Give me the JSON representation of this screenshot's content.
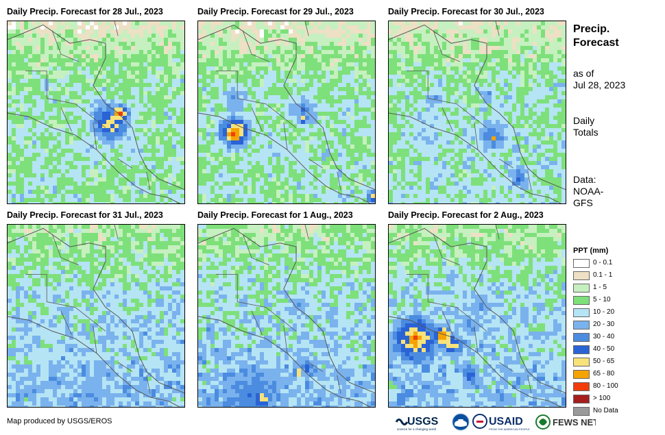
{
  "panels": [
    {
      "title": "Daily Precip. Forecast for 28 Jul., 2023",
      "date": "28 Jul., 2023"
    },
    {
      "title": "Daily Precip. Forecast for 29 Jul., 2023",
      "date": "29 Jul., 2023"
    },
    {
      "title": "Daily Precip. Forecast for 30 Jul., 2023",
      "date": "30 Jul., 2023"
    },
    {
      "title": "Daily Precip. Forecast for 31 Jul., 2023",
      "date": "31 Jul., 2023"
    },
    {
      "title": "Daily Precip. Forecast for 1 Aug., 2023",
      "date": "1 Aug., 2023"
    },
    {
      "title": "Daily Precip. Forecast for 2 Aug., 2023",
      "date": "2 Aug., 2023"
    }
  ],
  "side": {
    "title_line1": "Precip.",
    "title_line2": "Forecast",
    "asof_line1": "as of",
    "asof_line2": "Jul 28, 2023",
    "daily_line1": "Daily",
    "daily_line2": "Totals",
    "data_line1": "Data:",
    "data_line2": "NOAA-",
    "data_line3": "GFS"
  },
  "legend": {
    "title": "PPT (mm)",
    "items": [
      {
        "label": "0 - 0.1",
        "color": "#ffffff"
      },
      {
        "label": "0.1 - 1",
        "color": "#ede0c4"
      },
      {
        "label": "1 - 5",
        "color": "#c6f0bf"
      },
      {
        "label": "5 - 10",
        "color": "#7ee07a"
      },
      {
        "label": "10 - 20",
        "color": "#b5e4f5"
      },
      {
        "label": "20 - 30",
        "color": "#7ab2ed"
      },
      {
        "label": "30 - 40",
        "color": "#4b8ce0"
      },
      {
        "label": "40 - 50",
        "color": "#2a63d6"
      },
      {
        "label": "50 - 65",
        "color": "#f8e27a"
      },
      {
        "label": "65 - 80",
        "color": "#f5a300"
      },
      {
        "label": "80 - 100",
        "color": "#f23c0a"
      },
      {
        "label": "> 100",
        "color": "#a51d1d"
      },
      {
        "label": "No Data",
        "color": "#9a9a9a"
      }
    ]
  },
  "credit": "Map produced by USGS/EROS",
  "logos": {
    "usgs": "USGS",
    "usgs_tagline": "science for a changing world",
    "usaid": "USAID",
    "usaid_tagline": "FROM THE AMERICAN PEOPLE",
    "fewsnet": "FEWS NET"
  }
}
